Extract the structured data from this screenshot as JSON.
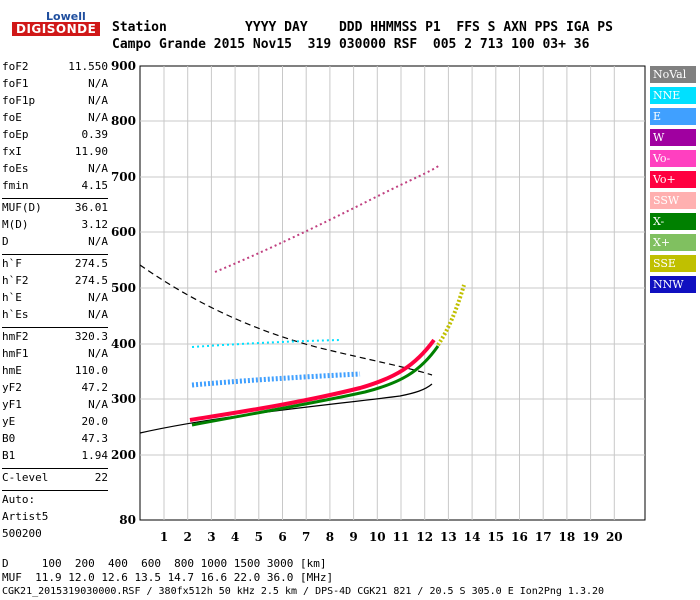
{
  "logo": {
    "top": "Lowell",
    "bottom": "DIGISONDE"
  },
  "header": {
    "row1": "Station          YYYY DAY    DDD HHMMSS P1  FFS S AXN PPS IGA PS",
    "row2": "Campo Grande 2015 Nov15  319 030000 RSF  005 2 713 100 03+ 36"
  },
  "params": [
    {
      "k": "foF2",
      "v": "11.550"
    },
    {
      "k": "foF1",
      "v": "N/A"
    },
    {
      "k": "foF1p",
      "v": "N/A"
    },
    {
      "k": "foE",
      "v": "N/A"
    },
    {
      "k": "foEp",
      "v": "0.39"
    },
    {
      "k": "fxI",
      "v": "11.90"
    },
    {
      "k": "foEs",
      "v": "N/A"
    },
    {
      "k": "fmin",
      "v": "4.15"
    },
    {
      "sep": true
    },
    {
      "k": "MUF(D)",
      "v": "36.01"
    },
    {
      "k": "M(D)",
      "v": "3.12"
    },
    {
      "k": "D",
      "v": "N/A"
    },
    {
      "sep": true
    },
    {
      "k": "h`F",
      "v": "274.5"
    },
    {
      "k": "h`F2",
      "v": "274.5"
    },
    {
      "k": "h`E",
      "v": "N/A"
    },
    {
      "k": "h`Es",
      "v": "N/A"
    },
    {
      "sep": true
    },
    {
      "k": "hmF2",
      "v": "320.3"
    },
    {
      "k": "hmF1",
      "v": "N/A"
    },
    {
      "k": "hmE",
      "v": "110.0"
    },
    {
      "k": "yF2",
      "v": "47.2"
    },
    {
      "k": "yF1",
      "v": "N/A"
    },
    {
      "k": "yE",
      "v": "20.0"
    },
    {
      "k": "B0",
      "v": "47.3"
    },
    {
      "k": "B1",
      "v": "1.94"
    },
    {
      "sep": true
    },
    {
      "k": "C-level",
      "v": "22"
    },
    {
      "sep": true
    },
    {
      "k": "Auto:",
      "v": ""
    },
    {
      "k": "Artist5",
      "v": ""
    },
    {
      "k": "500200",
      "v": ""
    }
  ],
  "legend": [
    {
      "label": "NoVal",
      "color": "#808080"
    },
    {
      "label": "NNE",
      "color": "#00e0ff"
    },
    {
      "label": "E",
      "color": "#40a0ff"
    },
    {
      "label": "W",
      "color": "#a000a0"
    },
    {
      "label": "Vo-",
      "color": "#ff40c0"
    },
    {
      "label": "Vo+",
      "color": "#ff0040"
    },
    {
      "label": "SSW",
      "color": "#ffb0b0"
    },
    {
      "label": "X-",
      "color": "#008000"
    },
    {
      "label": "X+",
      "color": "#80c060"
    },
    {
      "label": "SSE",
      "color": "#c0c000"
    },
    {
      "label": "NNW",
      "color": "#1010c0"
    }
  ],
  "axis": {
    "y_ticks": [
      "900",
      "800",
      "700",
      "600",
      "500",
      "400",
      "300",
      "200",
      "80"
    ],
    "x_ticks": [
      "1",
      "2",
      "3",
      "4",
      "5",
      "6",
      "7",
      "8",
      "9",
      "10",
      "11",
      "12",
      "13",
      "14",
      "15",
      "16",
      "17",
      "18",
      "19",
      "20"
    ]
  },
  "bottom": {
    "line1": "D     100  200  400  600  800 1000 1500 3000 [km]",
    "line2": "MUF  11.9 12.0 12.6 13.5 14.7 16.6 22.0 36.0 [MHz]",
    "line3": "CGK21_2015319030000.RSF / 380fx512h 50 kHz 2.5 km / DPS-4D CGK21 821 / 20.5 S 305.0 E Ion2Png 1.3.20"
  }
}
